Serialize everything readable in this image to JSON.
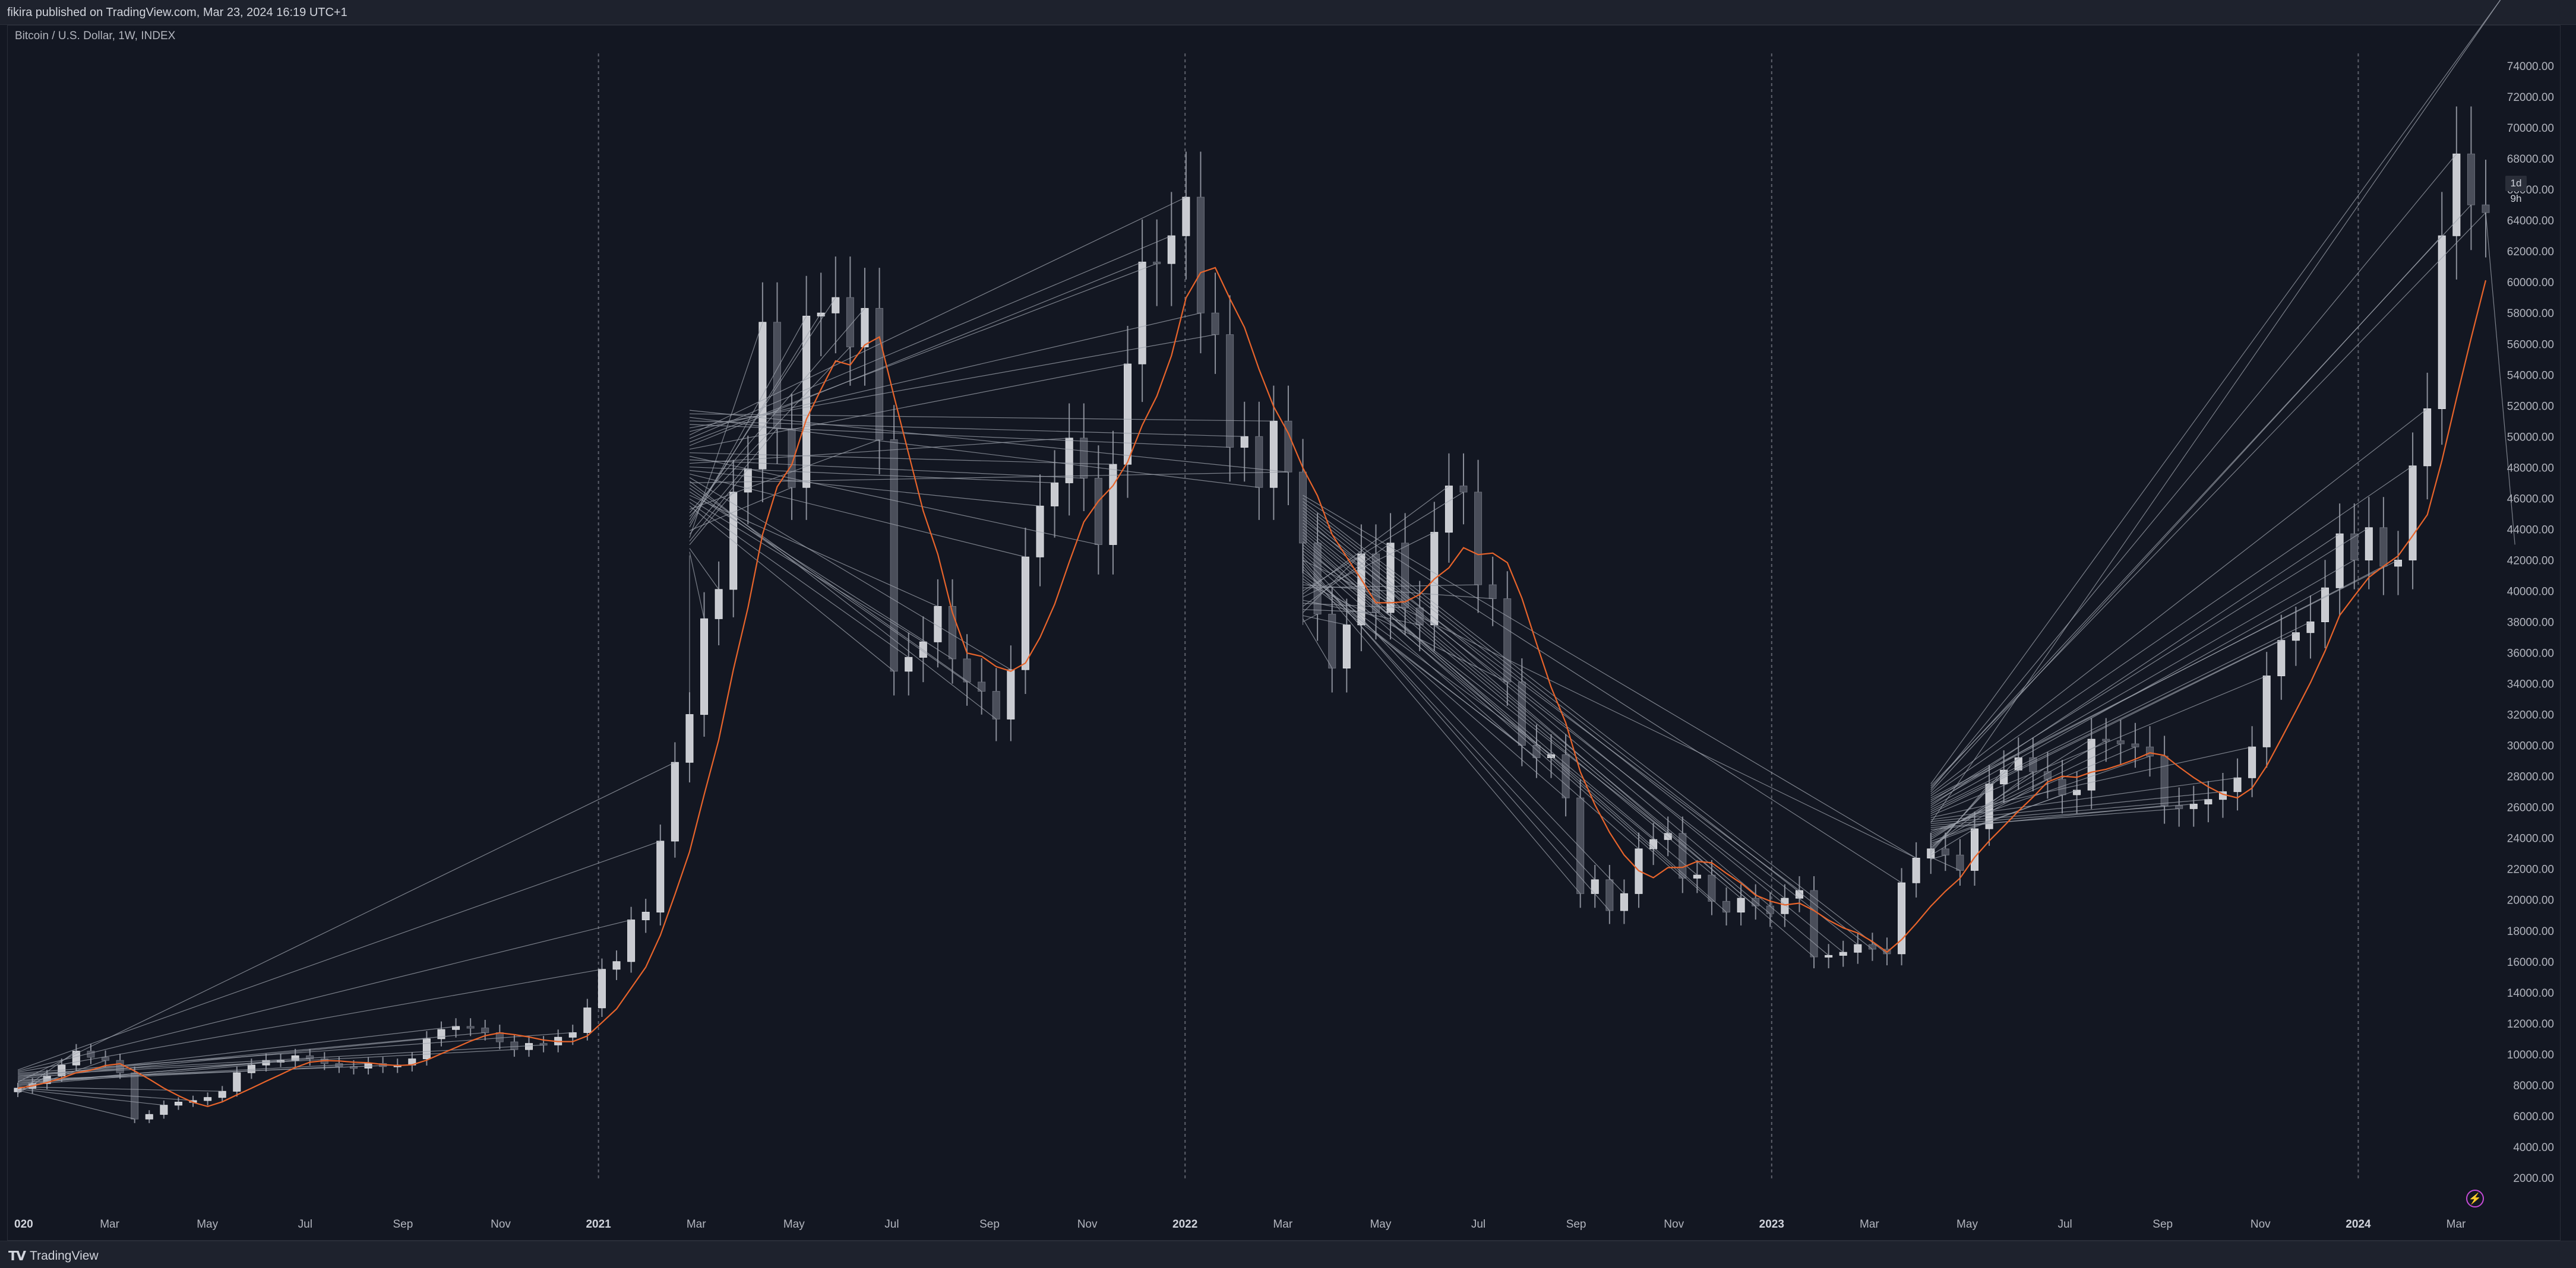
{
  "header": {
    "publish_text": "fikira published on TradingView.com, Mar 23, 2024 16:19 UTC+1"
  },
  "symbol": {
    "title": "Bitcoin / U.S. Dollar, 1W, INDEX"
  },
  "countdown": "1d 9h",
  "footer": {
    "brand": "TradingView",
    "brand_icon": "tradingview-logo-icon"
  },
  "colors": {
    "background": "#131722",
    "candle_up": "#c9cbd1",
    "candle_down": "#4a4e5a",
    "wick": "#8a8e99",
    "fan_lines": "#9ea3ad",
    "curve": "#e8642b",
    "grid_marker": "#5d606b"
  },
  "chart_data": {
    "type": "candlestick",
    "title": "Bitcoin / U.S. Dollar, 1W, INDEX",
    "ylim": [
      1000,
      75000
    ],
    "y_ticks": [
      "74000.00",
      "72000.00",
      "70000.00",
      "68000.00",
      "66000.00",
      "64000.00",
      "62000.00",
      "60000.00",
      "58000.00",
      "56000.00",
      "54000.00",
      "52000.00",
      "50000.00",
      "48000.00",
      "46000.00",
      "44000.00",
      "42000.00",
      "40000.00",
      "38000.00",
      "36000.00",
      "34000.00",
      "32000.00",
      "30000.00",
      "28000.00",
      "26000.00",
      "24000.00",
      "22000.00",
      "20000.00",
      "18000.00",
      "16000.00",
      "14000.00",
      "12000.00",
      "10000.00",
      "8000.00",
      "6000.00",
      "4000.00",
      "2000.00"
    ],
    "x_ticks": [
      {
        "label": "020",
        "month_index": 0,
        "bold": true
      },
      {
        "label": "Mar",
        "month_index": 2
      },
      {
        "label": "May",
        "month_index": 4
      },
      {
        "label": "Jul",
        "month_index": 6
      },
      {
        "label": "Sep",
        "month_index": 8
      },
      {
        "label": "Nov",
        "month_index": 10
      },
      {
        "label": "2021",
        "month_index": 12,
        "bold": true
      },
      {
        "label": "Mar",
        "month_index": 14
      },
      {
        "label": "May",
        "month_index": 16
      },
      {
        "label": "Jul",
        "month_index": 18
      },
      {
        "label": "Sep",
        "month_index": 20
      },
      {
        "label": "Nov",
        "month_index": 22
      },
      {
        "label": "2022",
        "month_index": 24,
        "bold": true
      },
      {
        "label": "Mar",
        "month_index": 26
      },
      {
        "label": "May",
        "month_index": 28
      },
      {
        "label": "Jul",
        "month_index": 30
      },
      {
        "label": "Sep",
        "month_index": 32
      },
      {
        "label": "Nov",
        "month_index": 34
      },
      {
        "label": "2023",
        "month_index": 36,
        "bold": true
      },
      {
        "label": "Mar",
        "month_index": 38
      },
      {
        "label": "May",
        "month_index": 40
      },
      {
        "label": "Jul",
        "month_index": 42
      },
      {
        "label": "Sep",
        "month_index": 44
      },
      {
        "label": "Nov",
        "month_index": 46
      },
      {
        "label": "2024",
        "month_index": 48,
        "bold": true
      },
      {
        "label": "Mar",
        "month_index": 50
      }
    ],
    "year_dividers": [
      "2021",
      "2022",
      "2023",
      "2024"
    ],
    "closes": [
      7800,
      8100,
      8600,
      9300,
      10200,
      9800,
      9600,
      8800,
      5800,
      6100,
      6700,
      6900,
      7000,
      7200,
      7600,
      8800,
      9300,
      9600,
      9600,
      9900,
      9700,
      9400,
      9200,
      9100,
      9400,
      9200,
      9300,
      9700,
      11000,
      11600,
      11800,
      11700,
      11400,
      10800,
      10300,
      10700,
      10600,
      11100,
      11400,
      13000,
      15500,
      16000,
      18700,
      19200,
      23800,
      28900,
      32000,
      38200,
      40100,
      46400,
      47900,
      57400,
      50500,
      46700,
      57800,
      58000,
      59000,
      55800,
      58300,
      49800,
      34800,
      35700,
      36700,
      39000,
      35600,
      34100,
      33500,
      31700,
      34900,
      42200,
      45500,
      47000,
      49900,
      47300,
      43000,
      48200,
      54700,
      61300,
      61200,
      63000,
      65500,
      58000,
      56600,
      49300,
      50000,
      46700,
      51000,
      47700,
      43100,
      38500,
      35000,
      37800,
      42400,
      38600,
      43100,
      38900,
      37800,
      43800,
      46800,
      46400,
      40400,
      39500,
      34100,
      30000,
      29200,
      29400,
      26600,
      20400,
      21300,
      19300,
      20400,
      23300,
      23900,
      24300,
      21400,
      21600,
      19900,
      19200,
      20100,
      19600,
      19100,
      20100,
      20600,
      16300,
      16400,
      16600,
      17100,
      16800,
      16500,
      21100,
      22700,
      23300,
      22900,
      21900,
      24600,
      27500,
      28400,
      29200,
      28300,
      27800,
      26800,
      27100,
      30400,
      30300,
      30100,
      29900,
      29300,
      26100,
      25900,
      26200,
      26500,
      27000,
      27900,
      29900,
      34500,
      36800,
      37300,
      38000,
      40200,
      43700,
      42000,
      44100,
      41600,
      42000,
      48100,
      51800,
      63000,
      68300,
      65000,
      64500
    ],
    "fan_anchors": [
      {
        "label": "2020 start",
        "value": 8200
      },
      {
        "label": "2021 start",
        "value": 47000
      },
      {
        "label": "2022 start",
        "value": 42000
      },
      {
        "label": "2023 start",
        "value": 25000
      },
      {
        "label": "2024 start",
        "value": 43000
      }
    ]
  }
}
